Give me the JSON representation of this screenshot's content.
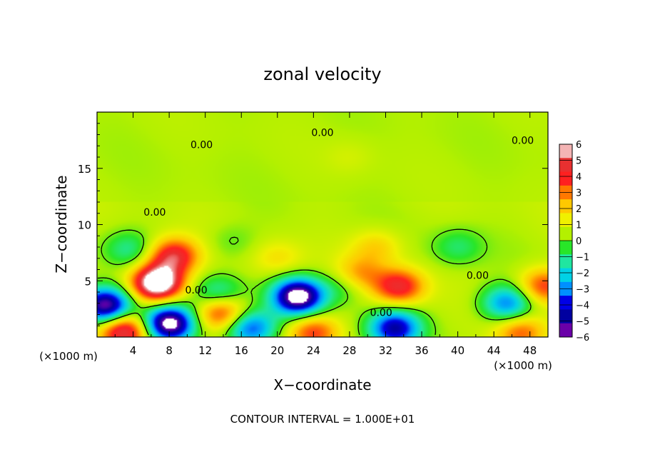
{
  "chart_data": {
    "type": "heatmap",
    "title": "zonal velocity",
    "xlabel": "X−coordinate",
    "ylabel": "Z−coordinate",
    "x_unit_left": "(×1000 m)",
    "x_unit_right": "(×1000 m)",
    "xlim": [
      0,
      50
    ],
    "ylim": [
      0,
      20
    ],
    "xticks": [
      4,
      8,
      12,
      16,
      20,
      24,
      28,
      32,
      36,
      40,
      44,
      48
    ],
    "xtick_labels": [
      "4",
      "8",
      "12",
      "16",
      "20",
      "24",
      "28",
      "32",
      "36",
      "40",
      "44",
      "48"
    ],
    "yticks": [
      5,
      10,
      15
    ],
    "ytick_labels": [
      "5",
      "10",
      "15"
    ],
    "colorbar": {
      "range": [
        -6,
        6
      ],
      "tick_values": [
        6,
        5,
        4,
        3,
        2,
        1,
        0,
        -1,
        -2,
        -3,
        -4,
        -5,
        -6
      ],
      "tick_labels": [
        "6",
        "5",
        "4",
        "3",
        "2",
        "1",
        "0",
        "−1",
        "−2",
        "−3",
        "−4",
        "−5",
        "−6"
      ],
      "colors": [
        "#f4b4b4",
        "#e83030",
        "#ff2020",
        "#ff7800",
        "#ffc800",
        "#f0f000",
        "#b4f000",
        "#28e628",
        "#20e6a0",
        "#00d2e6",
        "#0090ff",
        "#0000e6",
        "#0000a0",
        "#6a00a8"
      ]
    },
    "contour_level": 0,
    "contour_labels": [
      {
        "text": "0.00",
        "x": 25.0,
        "y": 18.2
      },
      {
        "text": "0.00",
        "x": 11.6,
        "y": 17.1
      },
      {
        "text": "0.00",
        "x": 47.2,
        "y": 17.5
      },
      {
        "text": "0.00",
        "x": 6.4,
        "y": 11.1
      },
      {
        "text": "0.00",
        "x": 42.2,
        "y": 5.5
      },
      {
        "text": "0.00",
        "x": 11.0,
        "y": 4.2
      },
      {
        "text": "0.00",
        "x": 31.5,
        "y": 2.2
      }
    ],
    "features": [
      {
        "kind": "max",
        "x": 6.7,
        "y": 4.8,
        "value": 7.5
      },
      {
        "kind": "max",
        "x": 8.5,
        "y": 7.2,
        "value": 4.5
      },
      {
        "kind": "max",
        "x": 33.5,
        "y": 4.5,
        "value": 4.2
      },
      {
        "kind": "max",
        "x": 29.0,
        "y": 5.5,
        "value": 2.5
      },
      {
        "kind": "max",
        "x": 13.8,
        "y": 2.2,
        "value": 4.0
      },
      {
        "kind": "max",
        "x": 3.0,
        "y": 0.5,
        "value": 5.0
      },
      {
        "kind": "max",
        "x": 24.0,
        "y": 0.4,
        "value": 3.5
      },
      {
        "kind": "max",
        "x": 47.0,
        "y": 0.4,
        "value": 3.0
      },
      {
        "kind": "max",
        "x": 49.5,
        "y": 4.5,
        "value": 3.5
      },
      {
        "kind": "min",
        "x": 22.3,
        "y": 3.6,
        "value": -7.5
      },
      {
        "kind": "min",
        "x": 1.0,
        "y": 2.8,
        "value": -7.0
      },
      {
        "kind": "min",
        "x": 8.0,
        "y": 1.2,
        "value": -7.5
      },
      {
        "kind": "min",
        "x": 33.0,
        "y": 0.8,
        "value": -5.5
      },
      {
        "kind": "min",
        "x": 17.0,
        "y": 0.8,
        "value": -4.5
      },
      {
        "kind": "min",
        "x": 45.5,
        "y": 3.0,
        "value": -4.0
      },
      {
        "kind": "min",
        "x": 13.5,
        "y": 3.8,
        "value": -2.5
      },
      {
        "kind": "min",
        "x": 3.5,
        "y": 7.8,
        "value": -1.8
      },
      {
        "kind": "min",
        "x": 40.0,
        "y": 8.0,
        "value": -1.5
      },
      {
        "kind": "min",
        "x": 27.5,
        "y": 4.6,
        "value": -1.6
      },
      {
        "kind": "min",
        "x": 15.0,
        "y": 8.5,
        "value": -0.8
      },
      {
        "kind": "max",
        "x": 28.0,
        "y": 16.0,
        "value": 0.9
      },
      {
        "kind": "max",
        "x": 31.0,
        "y": 8.0,
        "value": 1.6
      },
      {
        "kind": "max",
        "x": 20.0,
        "y": 7.0,
        "value": 1.2
      }
    ]
  },
  "footer": {
    "contour_interval": "CONTOUR INTERVAL = 1.000E+01"
  }
}
